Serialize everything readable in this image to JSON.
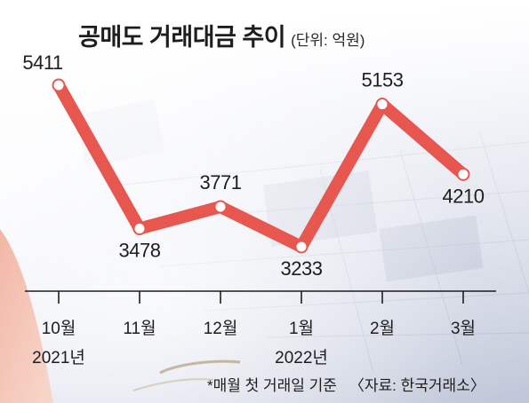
{
  "header": {
    "title": "공매도 거래대금 추이",
    "unit": "(단위: 억원)"
  },
  "chart_data": {
    "type": "line",
    "title": "공매도 거래대금 추이",
    "unit": "억원",
    "categories": [
      "10월",
      "11월",
      "12월",
      "1월",
      "2월",
      "3월"
    ],
    "year_labels": [
      {
        "category": "10월",
        "label": "2021년"
      },
      {
        "category": "1월",
        "label": "2022년"
      }
    ],
    "values": [
      5411,
      3478,
      3771,
      3233,
      5153,
      4210
    ],
    "data_labels": [
      "5411",
      "3478",
      "3771",
      "3233",
      "5153",
      "4210"
    ],
    "line_color": "#e8574f",
    "marker_fill": "#ffffff",
    "legend": "none",
    "grid": false
  },
  "footer": {
    "note": "*매월 첫 거래일 기준",
    "source": "〈자료: 한국거래소〉"
  }
}
